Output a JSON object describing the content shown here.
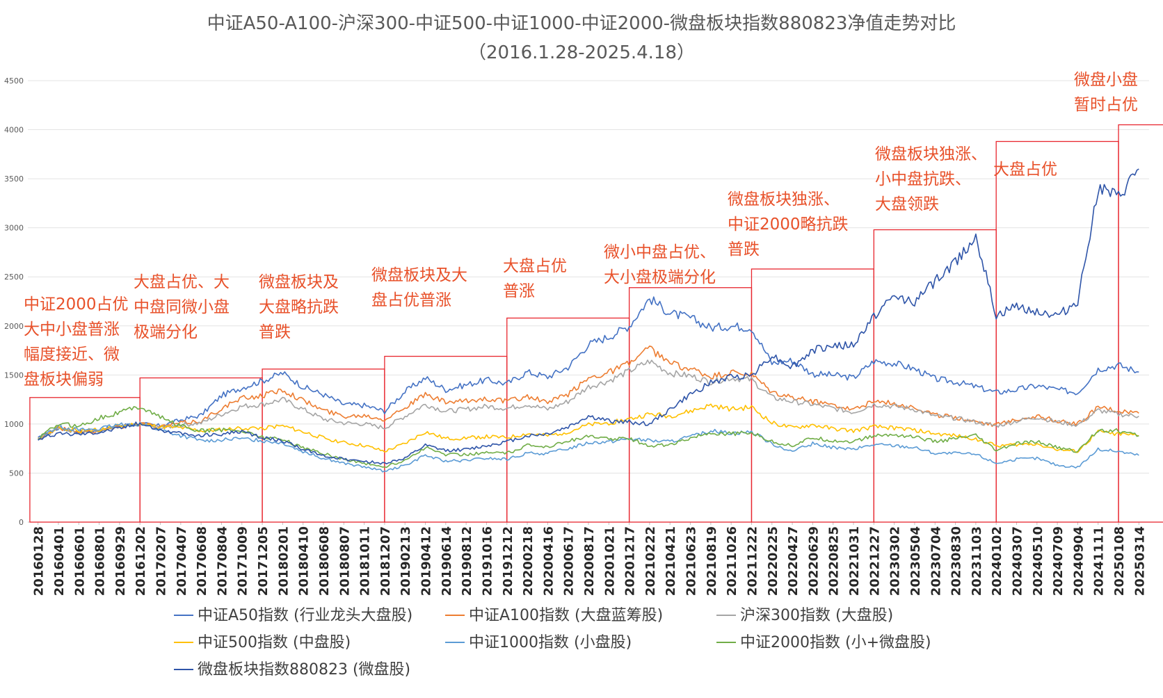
{
  "chart_data": {
    "type": "line",
    "title": "中证A50-A100-沪深300-中证500-中证1000-中证2000-微盘板块指数880823净值走势对比",
    "subtitle": "（2016.1.28-2025.4.18）",
    "xlabel": "",
    "ylabel": "",
    "ylim": [
      0,
      4500
    ],
    "y_ticks": [
      "0",
      "500",
      "1000",
      "1500",
      "2000",
      "2500",
      "3000",
      "3500",
      "4000",
      "4500"
    ],
    "x_tick_labels": [
      "20160128",
      "20160401",
      "20160601",
      "20160801",
      "20160929",
      "20161202",
      "20170207",
      "20170407",
      "20170608",
      "20170804",
      "20171009",
      "20171205",
      "20180201",
      "20180410",
      "20180608",
      "20180807",
      "20181011",
      "20181207",
      "20190213",
      "20190412",
      "20190614",
      "20190812",
      "20191016",
      "20191212",
      "20200218",
      "20200416",
      "20200617",
      "20200817",
      "20201021",
      "20201217",
      "20210222",
      "20210421",
      "20210623",
      "20210819",
      "20211026",
      "20211222",
      "20220225",
      "20220427",
      "20220629",
      "20220825",
      "20221031",
      "20221227",
      "20230302",
      "20230504",
      "20230704",
      "20230830",
      "20231103",
      "20240102",
      "20240307",
      "20240510",
      "20240709",
      "20240904",
      "20241111",
      "20250108",
      "20250314"
    ],
    "grid": true,
    "legend_position": "bottom",
    "series": [
      {
        "name": "中证A50指数 (行业龙头大盘股)",
        "color": "#4472C4",
        "values": [
          850,
          960,
          920,
          930,
          985,
          1000,
          980,
          1040,
          1090,
          1290,
          1370,
          1440,
          1520,
          1380,
          1300,
          1200,
          1190,
          1130,
          1330,
          1470,
          1350,
          1400,
          1450,
          1410,
          1530,
          1480,
          1580,
          1810,
          1890,
          2000,
          2280,
          2130,
          2080,
          1980,
          2000,
          1980,
          1620,
          1650,
          1510,
          1500,
          1470,
          1640,
          1620,
          1560,
          1460,
          1430,
          1380,
          1320,
          1350,
          1390,
          1350,
          1320,
          1560,
          1600,
          1530
        ]
      },
      {
        "name": "中证A100指数 (大盘蓝筹股)",
        "color": "#ED7D31",
        "values": [
          850,
          960,
          920,
          930,
          970,
          1010,
          970,
          1010,
          1030,
          1160,
          1260,
          1290,
          1350,
          1240,
          1140,
          1080,
          1090,
          1050,
          1170,
          1300,
          1220,
          1230,
          1260,
          1230,
          1280,
          1220,
          1300,
          1470,
          1530,
          1620,
          1770,
          1620,
          1560,
          1480,
          1520,
          1500,
          1320,
          1270,
          1230,
          1200,
          1150,
          1230,
          1210,
          1170,
          1090,
          1070,
          1030,
          990,
          1050,
          1080,
          1030,
          1000,
          1170,
          1130,
          1110
        ]
      },
      {
        "name": "沪深300指数 (大盘股)",
        "color": "#A5A5A5",
        "values": [
          850,
          955,
          915,
          925,
          965,
          1000,
          960,
          990,
          1010,
          1100,
          1180,
          1200,
          1250,
          1150,
          1050,
          1010,
          1000,
          960,
          1080,
          1200,
          1130,
          1150,
          1180,
          1160,
          1200,
          1150,
          1230,
          1380,
          1440,
          1540,
          1640,
          1520,
          1490,
          1430,
          1470,
          1450,
          1270,
          1230,
          1200,
          1160,
          1120,
          1200,
          1180,
          1150,
          1080,
          1060,
          1020,
          980,
          1030,
          1070,
          1020,
          990,
          1140,
          1100,
          1080
        ]
      },
      {
        "name": "中证500指数 (中盘股)",
        "color": "#FFC000",
        "values": [
          850,
          960,
          930,
          940,
          980,
          1000,
          970,
          960,
          930,
          940,
          960,
          960,
          980,
          920,
          860,
          810,
          780,
          720,
          800,
          920,
          850,
          860,
          870,
          860,
          900,
          880,
          920,
          990,
          1010,
          1050,
          1100,
          1080,
          1130,
          1190,
          1150,
          1170,
          1010,
          960,
          990,
          950,
          930,
          970,
          960,
          940,
          900,
          880,
          850,
          780,
          790,
          800,
          740,
          720,
          920,
          900,
          880
        ]
      },
      {
        "name": "中证1000指数 (小盘股)",
        "color": "#5B9BD5",
        "values": [
          850,
          980,
          940,
          950,
          990,
          1000,
          940,
          880,
          830,
          840,
          850,
          830,
          810,
          720,
          650,
          600,
          560,
          520,
          580,
          680,
          620,
          630,
          650,
          640,
          700,
          700,
          750,
          810,
          820,
          850,
          830,
          820,
          870,
          930,
          910,
          920,
          800,
          720,
          800,
          760,
          740,
          790,
          780,
          760,
          700,
          700,
          690,
          600,
          640,
          650,
          580,
          560,
          740,
          720,
          680
        ]
      },
      {
        "name": "中证2000指数 (小+微盘股)",
        "color": "#70AD47",
        "values": [
          850,
          1000,
          980,
          1060,
          1120,
          1180,
          1070,
          980,
          930,
          940,
          930,
          870,
          840,
          760,
          700,
          640,
          600,
          560,
          630,
          760,
          690,
          690,
          710,
          700,
          780,
          770,
          830,
          870,
          850,
          850,
          780,
          790,
          850,
          910,
          900,
          910,
          820,
          780,
          860,
          830,
          820,
          880,
          890,
          870,
          820,
          850,
          880,
          730,
          800,
          820,
          760,
          720,
          940,
          930,
          880
        ]
      },
      {
        "name": "微盘板块指数880823 (微盘股)",
        "color": "#2E54A8",
        "values": [
          850,
          900,
          900,
          920,
          960,
          1010,
          940,
          900,
          880,
          900,
          920,
          860,
          830,
          740,
          680,
          640,
          620,
          600,
          650,
          780,
          730,
          740,
          780,
          820,
          880,
          900,
          970,
          1080,
          1030,
          1020,
          1000,
          1150,
          1300,
          1420,
          1480,
          1500,
          1700,
          1580,
          1750,
          1800,
          1800,
          2100,
          2300,
          2250,
          2450,
          2650,
          2920,
          2100,
          2200,
          2150,
          2100,
          2250,
          3400,
          3300,
          3600
        ]
      }
    ],
    "annotations": [
      {
        "lines": [
          "中证2000占优",
          "大中小盘普涨",
          "幅度接近、微",
          "盘板块偏弱"
        ]
      },
      {
        "lines": [
          "大盘占优、大",
          "中盘同微小盘",
          "极端分化"
        ]
      },
      {
        "lines": [
          "微盘板块及",
          "大盘略抗跌",
          "普跌"
        ]
      },
      {
        "lines": [
          "微盘板块及大",
          "盘占优普涨"
        ]
      },
      {
        "lines": [
          "大盘占优",
          "普涨"
        ]
      },
      {
        "lines": [
          "微小中盘占优、",
          "大小盘极端分化"
        ]
      },
      {
        "lines": [
          "微盘板块独涨、",
          "中证2000略抗跌",
          "普跌"
        ]
      },
      {
        "lines": [
          "微盘板块独涨、",
          "小中盘抗跌、",
          "大盘领跌"
        ]
      },
      {
        "lines": [
          "大盘占优"
        ]
      },
      {
        "lines": [
          "微盘小盘",
          "暂时占优"
        ]
      }
    ],
    "colors": {
      "annotation_text": "#E8512A",
      "box_stroke": "#E8262E",
      "title": "#595959",
      "axis_text": "#262626"
    }
  }
}
